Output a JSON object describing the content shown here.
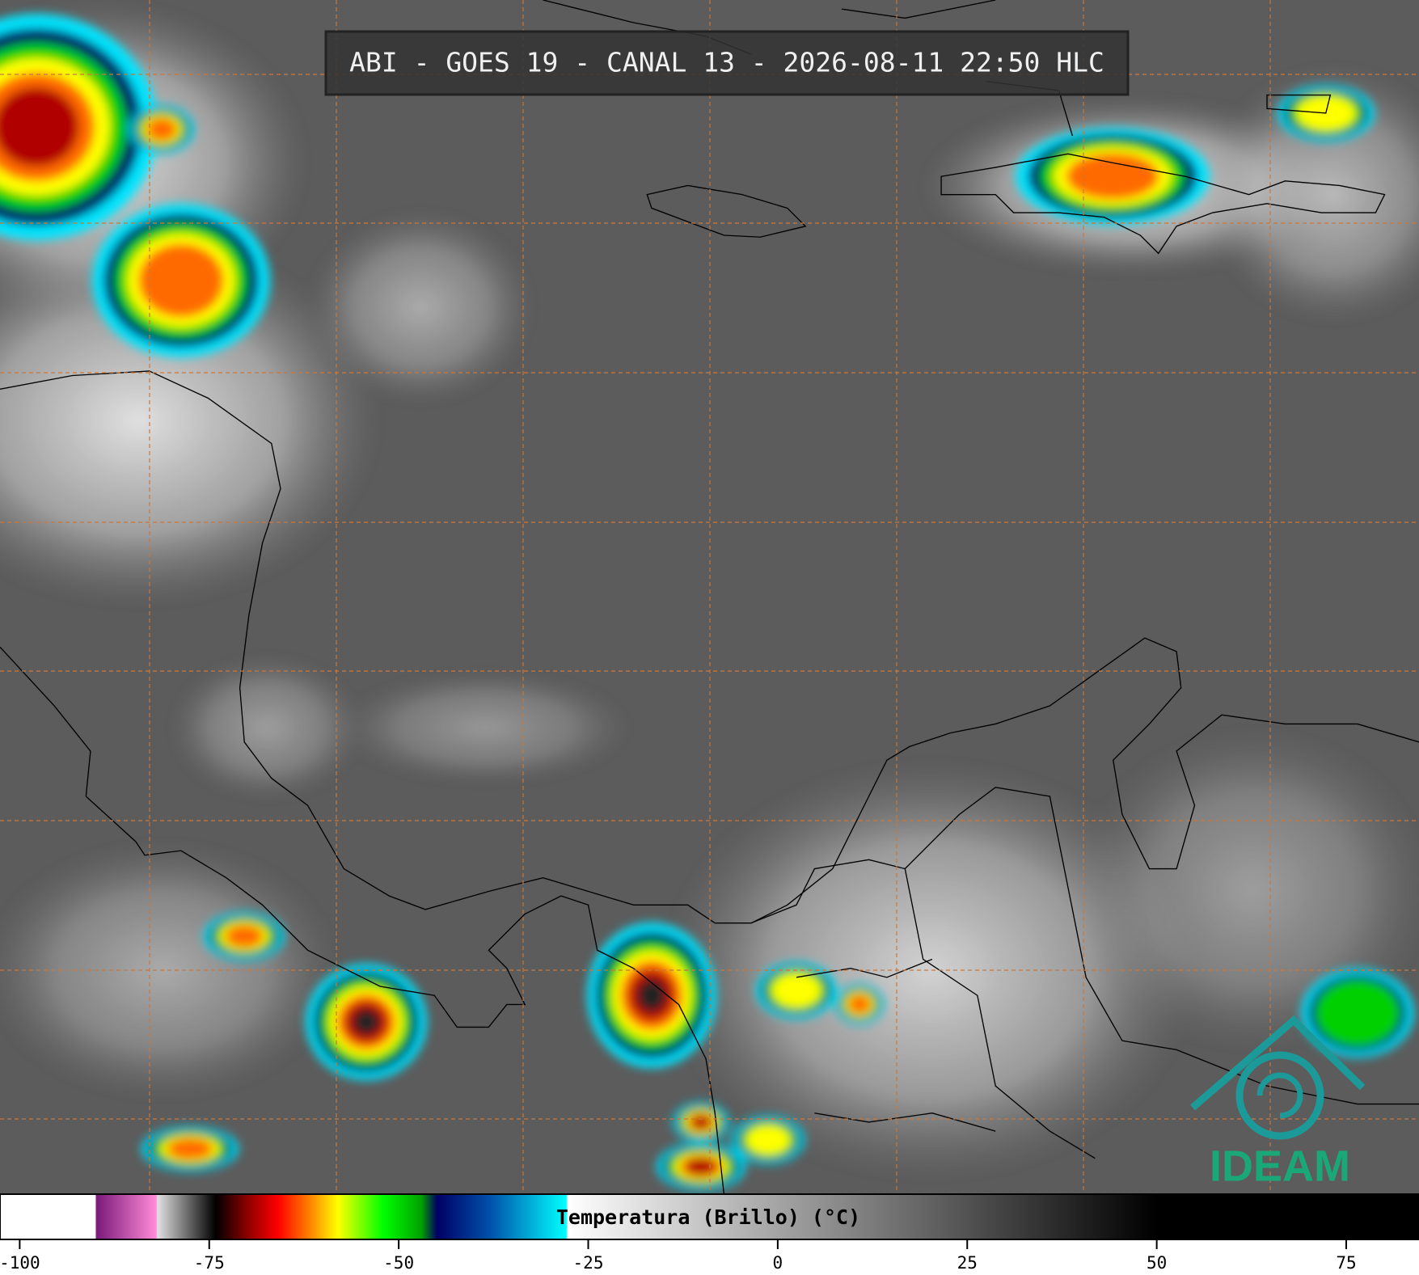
{
  "header": {
    "title": "ABI - GOES 19 - CANAL 13 - 2026-08-11 22:50 HLC"
  },
  "colorbar": {
    "label": "Temperatura (Brillo) (°C)",
    "xlim": [
      -102.6,
      84.6
    ],
    "ticks": [
      -100,
      -75,
      -50,
      -25,
      0,
      25,
      50,
      75
    ]
  },
  "logo": {
    "text": "IDEAM"
  }
}
